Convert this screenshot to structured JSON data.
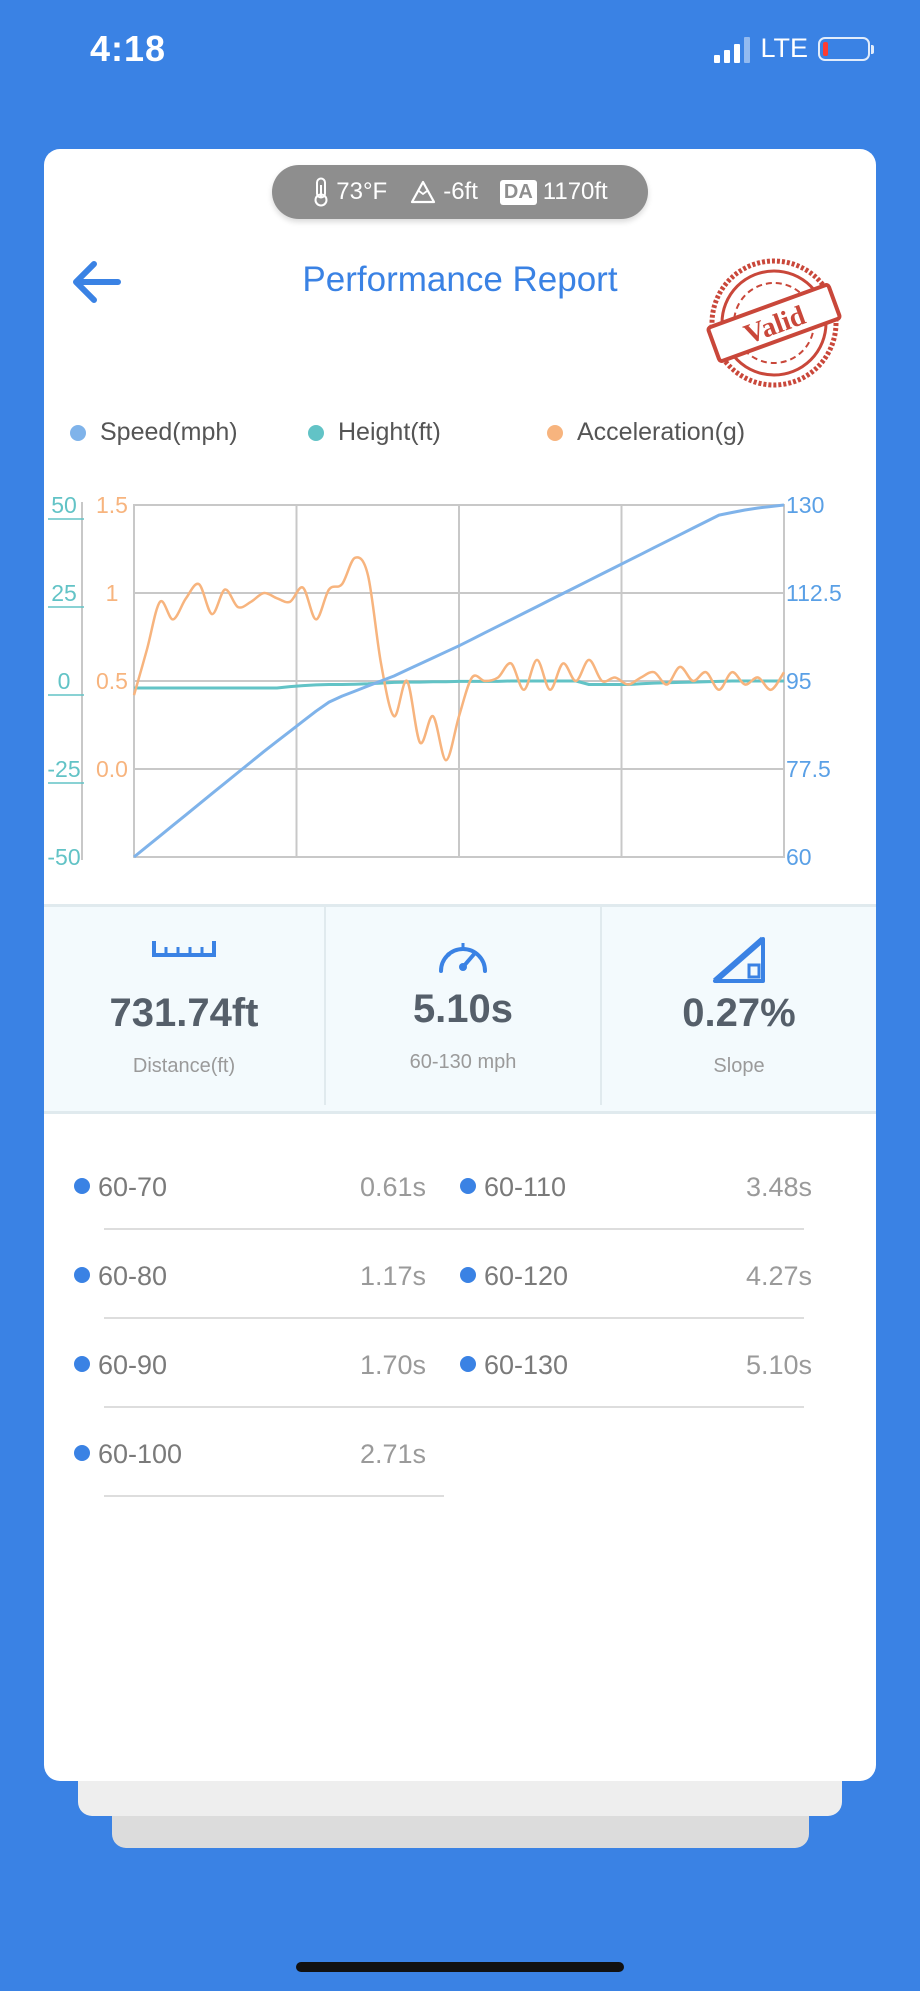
{
  "status": {
    "time": "4:18",
    "network": "LTE"
  },
  "environment": {
    "temperature": "73°F",
    "altitude": "-6ft",
    "da_badge": "DA",
    "density_altitude": "1170ft"
  },
  "header": {
    "title": "Performance Report",
    "stamp": "Valid"
  },
  "legend": [
    {
      "label": "Speed(mph)",
      "color": "#7FB3EA"
    },
    {
      "label": "Height(ft)",
      "color": "#62C3C6"
    },
    {
      "label": "Acceleration(g)",
      "color": "#F7B47E"
    }
  ],
  "chart_data": {
    "type": "line",
    "axes": {
      "height_ticks": [
        "50",
        "25",
        "0",
        "-25",
        "-50"
      ],
      "height_range": [
        -50,
        50
      ],
      "accel_ticks": [
        "1.5",
        "1",
        "0.5",
        "0.0"
      ],
      "accel_range": [
        0.0,
        1.5
      ],
      "speed_ticks": [
        "130",
        "112.5",
        "95",
        "77.5",
        "60"
      ],
      "speed_range": [
        60,
        130
      ]
    },
    "grid": true,
    "x": [
      0,
      0.02,
      0.04,
      0.06,
      0.08,
      0.1,
      0.12,
      0.14,
      0.16,
      0.18,
      0.2,
      0.22,
      0.24,
      0.26,
      0.28,
      0.3,
      0.32,
      0.34,
      0.36,
      0.38,
      0.4,
      0.42,
      0.44,
      0.46,
      0.48,
      0.5,
      0.52,
      0.54,
      0.56,
      0.58,
      0.6,
      0.62,
      0.64,
      0.66,
      0.68,
      0.7,
      0.72,
      0.74,
      0.76,
      0.78,
      0.8,
      0.82,
      0.84,
      0.86,
      0.88,
      0.9,
      0.92,
      0.94,
      0.96,
      0.98,
      1
    ],
    "series": [
      {
        "name": "Speed(mph)",
        "values": [
          60,
          62.1,
          64.2,
          66.3,
          68.4,
          70.5,
          72.6,
          74.7,
          76.8,
          78.9,
          81,
          83,
          85,
          87,
          89,
          90.8,
          92,
          93,
          94,
          95,
          96,
          97.2,
          98.4,
          99.6,
          100.8,
          102,
          103.3,
          104.6,
          105.9,
          107.2,
          108.5,
          109.8,
          111.1,
          112.4,
          113.7,
          115,
          116.3,
          117.6,
          118.9,
          120.2,
          121.5,
          122.8,
          124.1,
          125.4,
          126.7,
          128,
          128.5,
          129,
          129.4,
          129.7,
          130
        ]
      },
      {
        "name": "Height(ft)",
        "values": [
          -2,
          -2,
          -2,
          -2,
          -2,
          -2,
          -2,
          -2,
          -2,
          -2,
          -2,
          -2,
          -1.6,
          -1.3,
          -1.1,
          -1,
          -1,
          -0.9,
          -0.8,
          -0.6,
          -0.4,
          -0.3,
          -0.3,
          -0.2,
          -0.2,
          -0.1,
          -0.1,
          -0.1,
          -0.1,
          0,
          0,
          0,
          0,
          0,
          0,
          -1,
          -1,
          -1,
          -1,
          -0.8,
          -0.6,
          -0.5,
          -0.4,
          -0.3,
          -0.2,
          -0.1,
          0,
          0,
          0,
          0,
          0
        ]
      },
      {
        "name": "Acceleration(g)",
        "values": [
          0.42,
          0.68,
          0.95,
          0.85,
          0.97,
          1.05,
          0.88,
          1.02,
          0.92,
          0.95,
          1,
          0.97,
          0.95,
          1.03,
          0.85,
          1.02,
          1.05,
          1.2,
          1.1,
          0.6,
          0.3,
          0.5,
          0.15,
          0.3,
          0.05,
          0.3,
          0.52,
          0.5,
          0.52,
          0.6,
          0.45,
          0.62,
          0.45,
          0.6,
          0.5,
          0.62,
          0.5,
          0.52,
          0.48,
          0.52,
          0.55,
          0.48,
          0.58,
          0.5,
          0.55,
          0.45,
          0.55,
          0.48,
          0.52,
          0.45,
          0.55
        ]
      }
    ]
  },
  "stats": [
    {
      "icon": "ruler-icon",
      "value": "731.74ft",
      "label": "Distance(ft)"
    },
    {
      "icon": "speedometer-icon",
      "value": "5.10s",
      "label": "60-130 mph"
    },
    {
      "icon": "slope-icon",
      "value": "0.27%",
      "label": "Slope"
    }
  ],
  "splits": [
    {
      "label": "60-70",
      "value": "0.61s"
    },
    {
      "label": "60-80",
      "value": "1.17s"
    },
    {
      "label": "60-90",
      "value": "1.70s"
    },
    {
      "label": "60-100",
      "value": "2.71s"
    },
    {
      "label": "60-110",
      "value": "3.48s"
    },
    {
      "label": "60-120",
      "value": "4.27s"
    },
    {
      "label": "60-130",
      "value": "5.10s"
    }
  ]
}
